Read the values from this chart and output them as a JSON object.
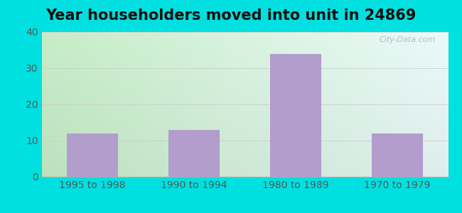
{
  "title": "Year householders moved into unit in 24869",
  "categories": [
    "1995 to 1998",
    "1990 to 1994",
    "1980 to 1989",
    "1970 to 1979"
  ],
  "values": [
    12,
    13,
    34,
    12
  ],
  "bar_color": "#b39dcc",
  "ylim": [
    0,
    40
  ],
  "yticks": [
    0,
    10,
    20,
    30,
    40
  ],
  "background_outer": "#00e0e0",
  "grad_left": "#c8eac8",
  "grad_right": "#eaf8f8",
  "grad_top": "#e8f8f8",
  "grad_bottom": "#d0ecd0",
  "grid_color": "#cccccc",
  "title_fontsize": 15,
  "tick_fontsize": 10,
  "tick_color": "#555555",
  "watermark": "City-Data.com"
}
